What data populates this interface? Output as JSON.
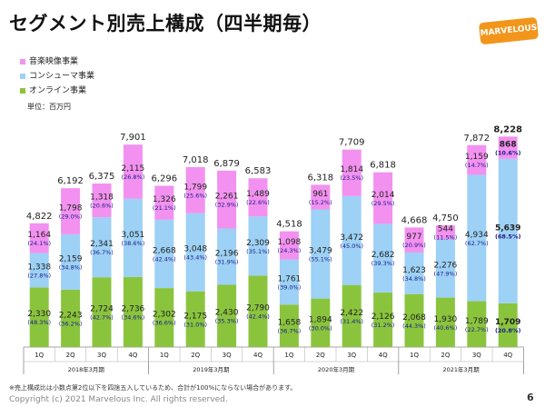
{
  "page": {
    "title": "セグメント別売上構成（四半期毎）",
    "logo_text": "MARVELOUS",
    "unit": "単位：百万円",
    "footnote": "※売上構成比は小数点第2位以下を四捨五入しているため、合計が100%にならない場合があります。",
    "copyright": "Copyright (c) 2021 Marvelous Inc. All rights reserved.",
    "page_number": "6"
  },
  "legend": [
    {
      "label": "音楽映像事業",
      "color": "#f291ef"
    },
    {
      "label": "コンシューマ事業",
      "color": "#9dd1f5"
    },
    {
      "label": "オンライン事業",
      "color": "#8ac43d"
    }
  ],
  "chart_data": {
    "type": "bar",
    "stacked": true,
    "title": "セグメント別売上構成（四半期毎）",
    "unit": "単位：百万円",
    "ylim": [
      0,
      8700
    ],
    "categories": [
      "1Q",
      "2Q",
      "3Q",
      "4Q",
      "1Q",
      "2Q",
      "3Q",
      "4Q",
      "1Q",
      "2Q",
      "3Q",
      "4Q",
      "1Q",
      "2Q",
      "3Q",
      "4Q"
    ],
    "groups": [
      {
        "label": "2018年3月期",
        "quarters": [
          "1Q",
          "2Q",
          "3Q",
          "4Q"
        ]
      },
      {
        "label": "2019年3月期",
        "quarters": [
          "1Q",
          "2Q",
          "3Q",
          "4Q"
        ]
      },
      {
        "label": "2020年3月期",
        "quarters": [
          "1Q",
          "2Q",
          "3Q",
          "4Q"
        ]
      },
      {
        "label": "2021年3月期",
        "quarters": [
          "1Q",
          "2Q",
          "3Q",
          "4Q"
        ]
      }
    ],
    "totals": [
      "4,822",
      "6,192",
      "6,375",
      "7,901",
      "6,296",
      "7,018",
      "6,879",
      "6,583",
      "4,518",
      "6,318",
      "7,709",
      "6,818",
      "4,668",
      "4,750",
      "7,872",
      "8,228"
    ],
    "series": [
      {
        "name": "オンライン事業",
        "values": [
          2330,
          2243,
          2724,
          2736,
          2302,
          2175,
          2430,
          2790,
          1658,
          1894,
          2422,
          2126,
          2068,
          1930,
          1789,
          1709
        ],
        "labels": [
          "2,330",
          "2,243",
          "2,724",
          "2,736",
          "2,302",
          "2,175",
          "2,430",
          "2,790",
          "1,658",
          "1,894",
          "2,422",
          "2,126",
          "2,068",
          "1,930",
          "1,789",
          "1,709"
        ],
        "shares": [
          "(48.3%)",
          "(36.2%)",
          "(42.7%)",
          "(34.6%)",
          "(36.6%)",
          "(31.0%)",
          "(35.3%)",
          "(42.4%)",
          "(36.7%)",
          "(30.0%)",
          "(31.4%)",
          "(31.2%)",
          "(44.3%)",
          "(40.6%)",
          "(22.7%)",
          "(20.8%)"
        ]
      },
      {
        "name": "コンシューマ事業",
        "values": [
          1338,
          2159,
          2341,
          3051,
          2668,
          3048,
          2196,
          2309,
          1761,
          3479,
          3472,
          2682,
          1623,
          2276,
          4934,
          5639
        ],
        "labels": [
          "1,338",
          "2,159",
          "2,341",
          "3,051",
          "2,668",
          "3,048",
          "2,196",
          "2,309",
          "1,761",
          "3,479",
          "3,472",
          "2,682",
          "1,623",
          "2,276",
          "4,934",
          "5,639"
        ],
        "shares": [
          "(27.8%)",
          "(34.8%)",
          "(36.7%)",
          "(38.6%)",
          "(42.4%)",
          "(43.4%)",
          "(31.9%)",
          "(35.1%)",
          "(39.0%)",
          "(55.1%)",
          "(45.0%)",
          "(39.3%)",
          "(34.8%)",
          "(47.9%)",
          "(62.7%)",
          "(68.5%)"
        ]
      },
      {
        "name": "音楽映像事業",
        "values": [
          1164,
          1798,
          1318,
          2115,
          1326,
          1799,
          2261,
          1489,
          1098,
          961,
          1814,
          2014,
          977,
          544,
          1159,
          868
        ],
        "labels": [
          "1,164",
          "1,798",
          "1,318",
          "2,115",
          "1,326",
          "1,799",
          "2,261",
          "1,489",
          "1,098",
          "961",
          "1,814",
          "2,014",
          "977",
          "544",
          "1,159",
          "868"
        ],
        "shares": [
          "(24.1%)",
          "(29.0%)",
          "(20.6%)",
          "(26.8%)",
          "(21.1%)",
          "(25.6%)",
          "(32.9%)",
          "(22.6%)",
          "(24.3%)",
          "(15.2%)",
          "(23.5%)",
          "(29.5%)",
          "(20.9%)",
          "(11.5%)",
          "(14.7%)",
          "(10.6%)"
        ]
      }
    ],
    "highlight_index": 15
  }
}
